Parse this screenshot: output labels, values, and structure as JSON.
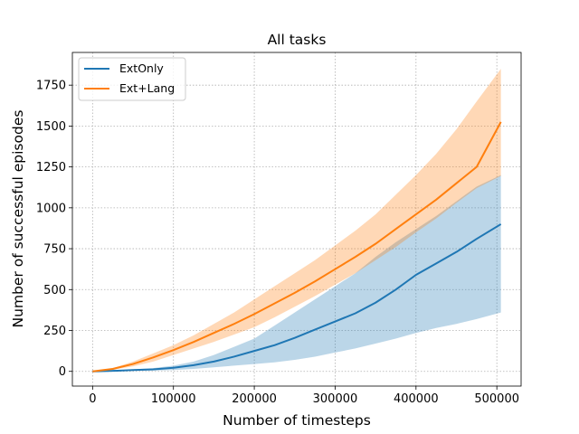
{
  "chart_data": {
    "type": "line",
    "title": "All tasks",
    "xlabel": "Number of timesteps",
    "ylabel": "Number of successful episodes",
    "xlim": [
      -25000,
      530000
    ],
    "ylim": [
      -90,
      1950
    ],
    "xticks": [
      0,
      100000,
      200000,
      300000,
      400000,
      500000
    ],
    "xtick_labels": [
      "0",
      "100000",
      "200000",
      "300000",
      "400000",
      "500000"
    ],
    "yticks": [
      0,
      250,
      500,
      750,
      1000,
      1250,
      1500,
      1750
    ],
    "ytick_labels": [
      "0",
      "250",
      "500",
      "750",
      "1000",
      "1250",
      "1500",
      "1750"
    ],
    "grid": true,
    "legend_position": "top-left",
    "series": [
      {
        "name": "ExtOnly",
        "color": "#1f77b4",
        "x": [
          0,
          25000,
          50000,
          75000,
          100000,
          125000,
          150000,
          175000,
          200000,
          225000,
          250000,
          275000,
          300000,
          325000,
          350000,
          375000,
          400000,
          425000,
          450000,
          475000,
          505000
        ],
        "y": [
          0,
          3,
          8,
          12,
          22,
          38,
          60,
          90,
          125,
          160,
          205,
          255,
          305,
          355,
          420,
          500,
          590,
          660,
          730,
          810,
          900
        ],
        "lower": [
          0,
          1,
          3,
          5,
          8,
          15,
          25,
          35,
          45,
          55,
          70,
          90,
          115,
          140,
          170,
          200,
          235,
          265,
          290,
          320,
          360
        ],
        "upper": [
          0,
          5,
          12,
          20,
          35,
          60,
          100,
          150,
          200,
          280,
          360,
          440,
          520,
          600,
          700,
          790,
          870,
          950,
          1040,
          1130,
          1200
        ]
      },
      {
        "name": "Ext+Lang",
        "color": "#ff7f0e",
        "x": [
          0,
          25000,
          50000,
          75000,
          100000,
          125000,
          150000,
          175000,
          200000,
          225000,
          250000,
          275000,
          300000,
          325000,
          350000,
          375000,
          400000,
          425000,
          450000,
          475000,
          505000
        ],
        "y": [
          0,
          15,
          45,
          85,
          130,
          180,
          235,
          290,
          350,
          415,
          480,
          550,
          625,
          700,
          780,
          870,
          960,
          1050,
          1150,
          1250,
          1525
        ],
        "lower": [
          0,
          10,
          30,
          60,
          100,
          140,
          180,
          225,
          270,
          330,
          395,
          460,
          530,
          600,
          680,
          760,
          850,
          935,
          1030,
          1120,
          1195
        ],
        "upper": [
          0,
          20,
          60,
          110,
          160,
          220,
          290,
          360,
          440,
          520,
          600,
          680,
          770,
          860,
          960,
          1080,
          1200,
          1330,
          1480,
          1650,
          1850
        ]
      }
    ]
  }
}
